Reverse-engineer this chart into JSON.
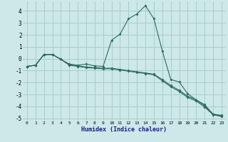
{
  "title": "",
  "xlabel": "Humidex (Indice chaleur)",
  "background_color": "#cce8e8",
  "grid_color": "#aacccc",
  "line_color": "#2d6b5e",
  "xlim": [
    -0.5,
    23.5
  ],
  "ylim": [
    -5.2,
    4.8
  ],
  "xticks": [
    0,
    1,
    2,
    3,
    4,
    5,
    6,
    7,
    8,
    9,
    10,
    11,
    12,
    13,
    14,
    15,
    16,
    17,
    18,
    19,
    20,
    21,
    22,
    23
  ],
  "yticks": [
    -5,
    -4,
    -3,
    -2,
    -1,
    0,
    1,
    2,
    3,
    4
  ],
  "series": [
    {
      "x": [
        0,
        1,
        2,
        3,
        4,
        5,
        6,
        7,
        8,
        9,
        10,
        11,
        12,
        13,
        14,
        15,
        16,
        17,
        18,
        19,
        20,
        21,
        22,
        23
      ],
      "y": [
        -0.65,
        -0.55,
        0.35,
        0.35,
        -0.05,
        -0.45,
        -0.55,
        -0.45,
        -0.6,
        -0.65,
        1.55,
        2.05,
        3.35,
        3.75,
        4.45,
        3.35,
        0.65,
        -1.75,
        -1.95,
        -2.95,
        -3.45,
        -3.85,
        -4.65,
        -4.75
      ]
    },
    {
      "x": [
        0,
        1,
        2,
        3,
        4,
        5,
        6,
        7,
        8,
        9,
        10,
        11,
        12,
        13,
        14,
        15,
        16,
        17,
        18,
        19,
        20,
        21,
        22,
        23
      ],
      "y": [
        -0.65,
        -0.55,
        0.35,
        0.35,
        -0.05,
        -0.55,
        -0.65,
        -0.75,
        -0.8,
        -0.85,
        -0.85,
        -0.95,
        -1.05,
        -1.15,
        -1.25,
        -1.35,
        -1.85,
        -2.35,
        -2.75,
        -3.25,
        -3.55,
        -4.05,
        -4.7,
        -4.85
      ]
    },
    {
      "x": [
        0,
        1,
        2,
        3,
        4,
        5,
        6,
        7,
        8,
        9,
        10,
        11,
        12,
        13,
        14,
        15,
        16,
        17,
        18,
        19,
        20,
        21,
        22,
        23
      ],
      "y": [
        -0.65,
        -0.55,
        0.35,
        0.35,
        -0.05,
        -0.5,
        -0.6,
        -0.7,
        -0.75,
        -0.8,
        -0.8,
        -0.9,
        -1.0,
        -1.1,
        -1.2,
        -1.3,
        -1.75,
        -2.25,
        -2.65,
        -3.15,
        -3.45,
        -3.95,
        -4.65,
        -4.8
      ]
    }
  ]
}
